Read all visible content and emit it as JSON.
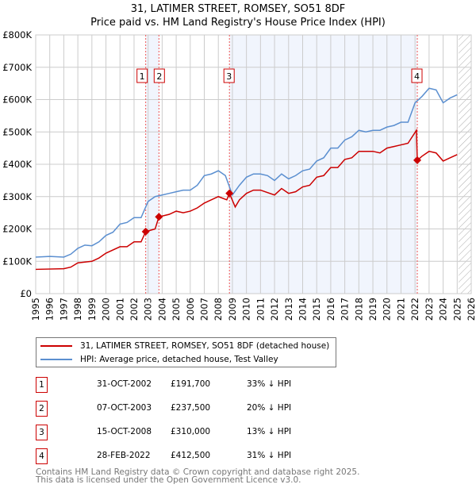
{
  "chart_data": {
    "type": "line",
    "title": "31, LATIMER STREET, ROMSEY, SO51 8DF",
    "subtitle": "Price paid vs. HM Land Registry's House Price Index (HPI)",
    "xlim": [
      1995,
      2026
    ],
    "ylim": [
      0,
      800000
    ],
    "y_ticks": [
      {
        "v": 0,
        "label": "£0"
      },
      {
        "v": 100000,
        "label": "£100K"
      },
      {
        "v": 200000,
        "label": "£200K"
      },
      {
        "v": 300000,
        "label": "£300K"
      },
      {
        "v": 400000,
        "label": "£400K"
      },
      {
        "v": 500000,
        "label": "£500K"
      },
      {
        "v": 600000,
        "label": "£600K"
      },
      {
        "v": 700000,
        "label": "£700K"
      },
      {
        "v": 800000,
        "label": "£800K"
      }
    ],
    "x_ticks": [
      "1995",
      "1996",
      "1997",
      "1998",
      "1999",
      "2000",
      "2001",
      "2002",
      "2003",
      "2004",
      "2005",
      "2006",
      "2007",
      "2008",
      "2009",
      "2010",
      "2011",
      "2012",
      "2013",
      "2014",
      "2015",
      "2016",
      "2017",
      "2018",
      "2019",
      "2020",
      "2021",
      "2022",
      "2023",
      "2024",
      "2025",
      "2026"
    ],
    "grid": true,
    "series": [
      {
        "name": "31, LATIMER STREET, ROMSEY, SO51 8DF (detached house)",
        "color": "#cc0000",
        "x": [
          1995,
          1997,
          1997.5,
          1998,
          1999,
          1999.5,
          2000,
          2001,
          2001.5,
          2002,
          2002.5,
          2002.83,
          2003.5,
          2003.77,
          2004.5,
          2005,
          2005.5,
          2006,
          2006.5,
          2007,
          2008,
          2008.6,
          2008.79,
          2009.2,
          2009.5,
          2010,
          2010.5,
          2011,
          2012,
          2012.5,
          2013,
          2013.5,
          2014,
          2014.5,
          2015,
          2015.5,
          2016,
          2016.5,
          2017,
          2017.5,
          2018,
          2019,
          2019.5,
          2020,
          2020.5,
          2021,
          2021.5,
          2022.1,
          2022.16,
          2022.5,
          2023,
          2023.5,
          2024,
          2024.5,
          2025
        ],
        "y": [
          75000,
          77000,
          82000,
          95000,
          100000,
          110000,
          125000,
          145000,
          145000,
          160000,
          160000,
          191700,
          200000,
          237500,
          245000,
          255000,
          250000,
          255000,
          265000,
          280000,
          300000,
          290000,
          310000,
          268000,
          290000,
          310000,
          320000,
          320000,
          305000,
          325000,
          310000,
          315000,
          330000,
          335000,
          360000,
          365000,
          390000,
          390000,
          415000,
          420000,
          440000,
          440000,
          435000,
          450000,
          455000,
          460000,
          465000,
          505000,
          412500,
          425000,
          440000,
          435000,
          410000,
          420000,
          430000
        ]
      },
      {
        "name": "HPI: Average price, detached house, Test Valley",
        "color": "#5b8fd0",
        "x": [
          1995,
          1996,
          1997,
          1997.5,
          1998,
          1998.5,
          1999,
          1999.5,
          2000,
          2000.5,
          2001,
          2001.5,
          2002,
          2002.5,
          2003,
          2003.5,
          2004,
          2004.5,
          2005,
          2005.5,
          2006,
          2006.5,
          2007,
          2007.5,
          2008,
          2008.5,
          2009,
          2009.5,
          2010,
          2010.5,
          2011,
          2011.5,
          2012,
          2012.5,
          2013,
          2013.5,
          2014,
          2014.5,
          2015,
          2015.5,
          2016,
          2016.5,
          2017,
          2017.5,
          2018,
          2018.5,
          2019,
          2019.5,
          2020,
          2020.5,
          2021,
          2021.5,
          2022,
          2022.5,
          2023,
          2023.5,
          2024,
          2024.5,
          2025
        ],
        "y": [
          113000,
          115000,
          113000,
          122000,
          140000,
          150000,
          148000,
          160000,
          180000,
          190000,
          215000,
          220000,
          235000,
          235000,
          285000,
          300000,
          305000,
          310000,
          315000,
          320000,
          320000,
          335000,
          365000,
          370000,
          380000,
          365000,
          305000,
          335000,
          360000,
          370000,
          370000,
          365000,
          350000,
          370000,
          355000,
          365000,
          380000,
          385000,
          410000,
          420000,
          450000,
          450000,
          475000,
          485000,
          505000,
          500000,
          505000,
          505000,
          515000,
          520000,
          530000,
          530000,
          590000,
          610000,
          635000,
          630000,
          590000,
          605000,
          615000
        ]
      }
    ],
    "sales": [
      {
        "n": "1",
        "x": 2002.83,
        "y": 191700,
        "date": "31-OCT-2002",
        "price": "£191,700",
        "hpi": "33% ↓ HPI"
      },
      {
        "n": "2",
        "x": 2003.77,
        "y": 237500,
        "date": "07-OCT-2003",
        "price": "£237,500",
        "hpi": "20% ↓ HPI"
      },
      {
        "n": "3",
        "x": 2008.79,
        "y": 310000,
        "date": "15-OCT-2008",
        "price": "£310,000",
        "hpi": "13% ↓ HPI"
      },
      {
        "n": "4",
        "x": 2022.16,
        "y": 412500,
        "date": "28-FEB-2022",
        "price": "£412,500",
        "hpi": "31% ↓ HPI"
      }
    ],
    "shaded_ranges": [
      [
        2002.83,
        2003.77
      ],
      [
        2008.79,
        2022.16
      ]
    ],
    "forecast_from": 2025.1,
    "legend_position": "below"
  },
  "footer": [
    "Contains HM Land Registry data © Crown copyright and database right 2025.",
    "This data is licensed under the Open Government Licence v3.0."
  ]
}
